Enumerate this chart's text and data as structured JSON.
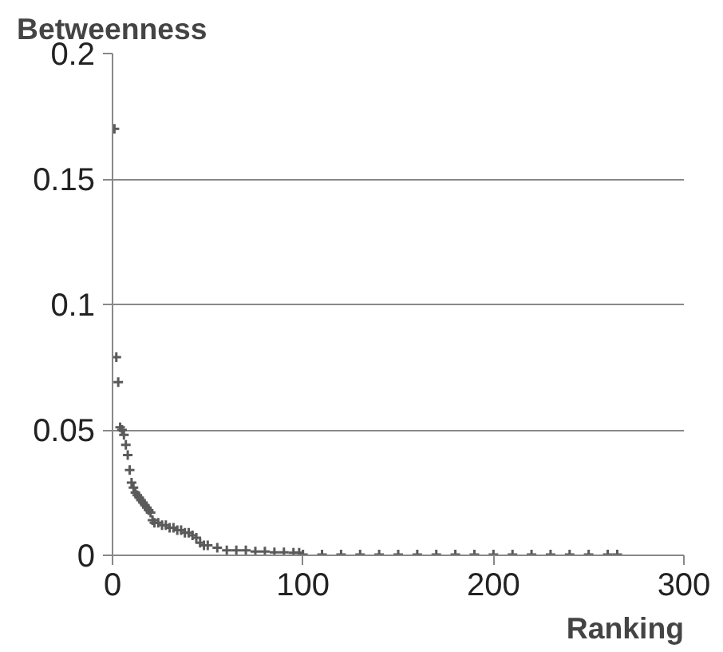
{
  "chart_data": {
    "type": "scatter",
    "ylabel": "Betweenness",
    "xlabel": "Ranking",
    "xlim": [
      0,
      300
    ],
    "ylim": [
      0,
      0.2
    ],
    "xticks": [
      0,
      100,
      200,
      300
    ],
    "yticks": [
      0,
      0.05,
      0.1,
      0.15,
      0.2
    ],
    "grid": "y",
    "marker": "cross",
    "series": [
      {
        "color": "#5a5a5a",
        "x": [
          1,
          2,
          3,
          4,
          5,
          6,
          7,
          8,
          9,
          10,
          11,
          12,
          13,
          14,
          15,
          16,
          17,
          18,
          19,
          20,
          21,
          22,
          24,
          26,
          28,
          30,
          32,
          34,
          36,
          38,
          40,
          42,
          44,
          46,
          48,
          50,
          55,
          60,
          65,
          70,
          75,
          80,
          85,
          90,
          95,
          98,
          100,
          110,
          120,
          130,
          140,
          150,
          160,
          170,
          180,
          190,
          200,
          210,
          220,
          230,
          240,
          250,
          260,
          265
        ],
        "values": [
          0.17,
          0.079,
          0.069,
          0.051,
          0.05,
          0.048,
          0.044,
          0.04,
          0.034,
          0.029,
          0.027,
          0.025,
          0.024,
          0.023,
          0.022,
          0.021,
          0.02,
          0.019,
          0.018,
          0.017,
          0.014,
          0.013,
          0.013,
          0.012,
          0.012,
          0.011,
          0.011,
          0.01,
          0.01,
          0.009,
          0.009,
          0.008,
          0.007,
          0.005,
          0.004,
          0.004,
          0.003,
          0.002,
          0.002,
          0.002,
          0.0015,
          0.0015,
          0.0012,
          0.0012,
          0.001,
          0.001,
          0.0003,
          0.0003,
          0.0003,
          0.0003,
          0.0003,
          0.0003,
          0.0003,
          0.0003,
          0.0003,
          0.0003,
          0.0003,
          0.0003,
          0.0003,
          0.0003,
          0.0003,
          0.0003,
          0.0003,
          0.0003
        ]
      }
    ]
  }
}
